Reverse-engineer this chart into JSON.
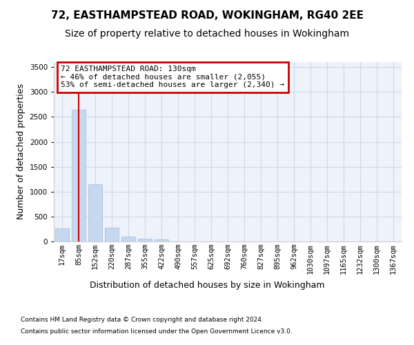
{
  "title1": "72, EASTHAMPSTEAD ROAD, WOKINGHAM, RG40 2EE",
  "title2": "Size of property relative to detached houses in Wokingham",
  "xlabel": "Distribution of detached houses by size in Wokingham",
  "ylabel": "Number of detached properties",
  "footnote1": "Contains HM Land Registry data © Crown copyright and database right 2024.",
  "footnote2": "Contains public sector information licensed under the Open Government Licence v3.0.",
  "bar_labels": [
    "17sqm",
    "85sqm",
    "152sqm",
    "220sqm",
    "287sqm",
    "355sqm",
    "422sqm",
    "490sqm",
    "557sqm",
    "625sqm",
    "692sqm",
    "760sqm",
    "827sqm",
    "895sqm",
    "962sqm",
    "1030sqm",
    "1097sqm",
    "1165sqm",
    "1232sqm",
    "1300sqm",
    "1367sqm"
  ],
  "bar_values": [
    270,
    2650,
    1150,
    280,
    100,
    60,
    40,
    0,
    0,
    0,
    0,
    0,
    0,
    0,
    0,
    0,
    0,
    0,
    0,
    0,
    0
  ],
  "bar_color": "#c5d8f0",
  "bar_edge_color": "#a0b8d8",
  "property_line_x": 1,
  "annotation_text1": "72 EASTHAMPSTEAD ROAD: 130sqm",
  "annotation_text2": "← 46% of detached houses are smaller (2,055)",
  "annotation_text3": "53% of semi-detached houses are larger (2,340) →",
  "annotation_box_color": "#ffffff",
  "annotation_box_edge_color": "#cc0000",
  "ylim": [
    0,
    3600
  ],
  "yticks": [
    0,
    500,
    1000,
    1500,
    2000,
    2500,
    3000,
    3500
  ],
  "grid_color": "#d0d8e8",
  "background_color": "#eef2fa",
  "title1_fontsize": 11,
  "title2_fontsize": 10,
  "ylabel_fontsize": 9,
  "xlabel_fontsize": 9,
  "tick_fontsize": 7.5,
  "annotation_fontsize": 8,
  "footnote_fontsize": 6.5
}
